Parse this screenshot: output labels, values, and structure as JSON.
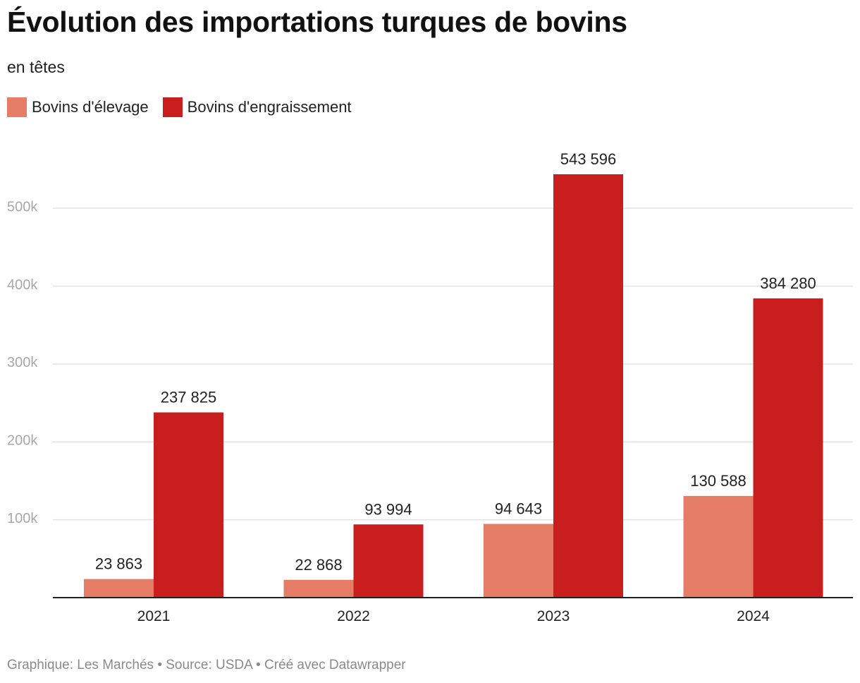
{
  "chart_data": {
    "type": "bar",
    "title": "Évolution des importations turques de bovins",
    "subtitle": "en têtes",
    "categories": [
      "2021",
      "2022",
      "2023",
      "2024"
    ],
    "series": [
      {
        "name": "Bovins d'élevage",
        "color": "#e47c66",
        "values": [
          23863,
          22868,
          94643,
          130588
        ],
        "labels": [
          "23 863",
          "22 868",
          "94 643",
          "130 588"
        ]
      },
      {
        "name": "Bovins d'engraissement",
        "color": "#c81e1e",
        "values": [
          237825,
          93994,
          543596,
          384280
        ],
        "labels": [
          "237 825",
          "93 994",
          "543 596",
          "384 280"
        ]
      }
    ],
    "yticks": [
      100000,
      200000,
      300000,
      400000,
      500000
    ],
    "ytick_labels": [
      "100k",
      "200k",
      "300k",
      "400k",
      "500k"
    ],
    "ylim": [
      0,
      543596
    ],
    "grid": true,
    "legend_position": "top-left"
  },
  "footer": "Graphique: Les Marchés • Source: USDA • Créé avec Datawrapper"
}
